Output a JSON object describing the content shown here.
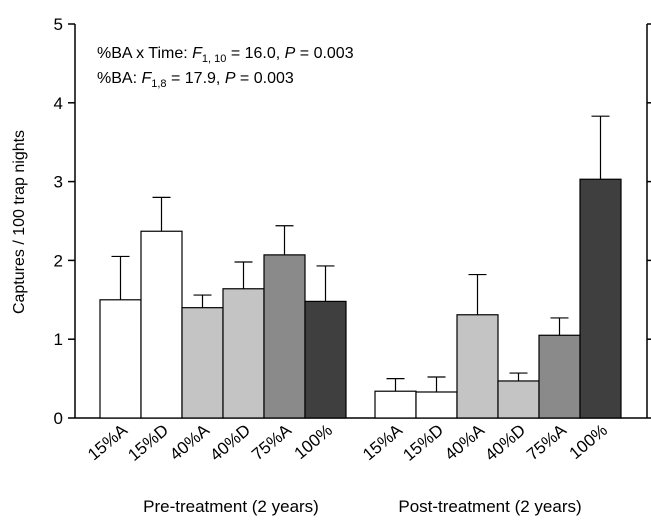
{
  "chart_data": {
    "type": "bar",
    "y_label": "Captures / 100 trap nights",
    "ylim": [
      0,
      5
    ],
    "yticks": [
      0,
      1,
      2,
      3,
      4,
      5
    ],
    "annotations": [
      [
        {
          "text": "%BA x Time:  "
        },
        {
          "text": "F",
          "style": "italic"
        },
        {
          "text": "1, 10",
          "style": "sub"
        },
        {
          "text": " = 16.0, "
        },
        {
          "text": "P",
          "style": "italic"
        },
        {
          "text": " = 0.003"
        }
      ],
      [
        {
          "text": "%BA:  "
        },
        {
          "text": "F",
          "style": "italic"
        },
        {
          "text": "1,8",
          "style": "sub"
        },
        {
          "text": " = 17.9, "
        },
        {
          "text": "P",
          "style": "italic"
        },
        {
          "text": " = 0.003"
        }
      ]
    ],
    "colors": [
      "#ffffff",
      "#ffffff",
      "#c4c4c4",
      "#c4c4c4",
      "#8a8a8a",
      "#3f3f3f"
    ],
    "groups": [
      {
        "name": "Pre-treatment (2 years)",
        "categories": [
          "15%A",
          "15%D",
          "40%A",
          "40%D",
          "75%A",
          "100%"
        ],
        "values": [
          1.5,
          2.37,
          1.4,
          1.64,
          2.07,
          1.48
        ],
        "errors": [
          0.55,
          0.43,
          0.16,
          0.34,
          0.37,
          0.45
        ]
      },
      {
        "name": "Post-treatment (2 years)",
        "categories": [
          "15%A",
          "15%D",
          "40%A",
          "40%D",
          "75%A",
          "100%"
        ],
        "values": [
          0.34,
          0.33,
          1.31,
          0.47,
          1.05,
          3.03
        ],
        "errors": [
          0.16,
          0.19,
          0.51,
          0.1,
          0.22,
          0.8
        ]
      }
    ]
  }
}
